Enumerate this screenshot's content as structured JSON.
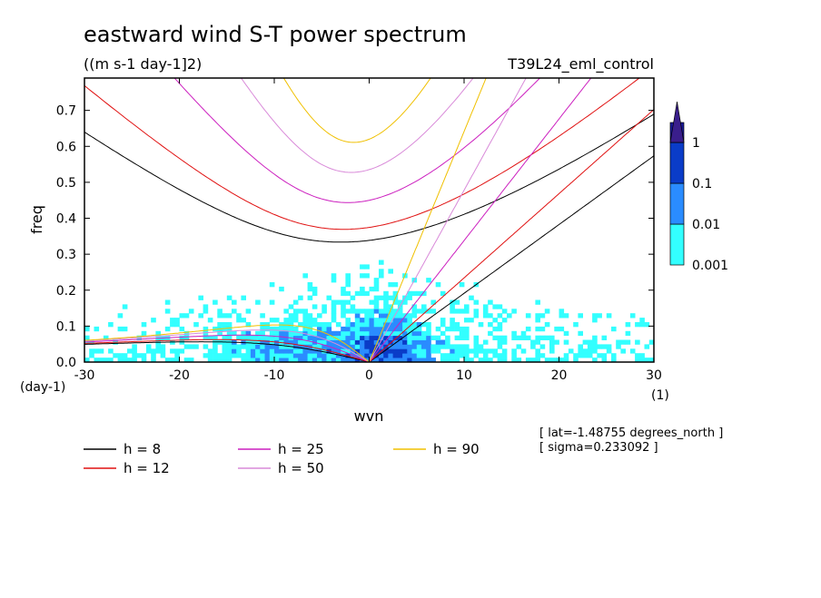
{
  "chart_data": {
    "type": "heatmap",
    "title": "eastward wind S-T power spectrum",
    "subtitle": "((m s-1 day-1]2)",
    "experiment": "T39L24_eml_control",
    "xlabel": "wvn",
    "ylabel": "freq",
    "xunit": "(1)",
    "yunit": "(day-1)",
    "xlim": [
      -30,
      30
    ],
    "ylim": [
      0,
      0.79
    ],
    "xticks": [
      "-30",
      "-20",
      "-10",
      "0",
      "10",
      "20",
      "30"
    ],
    "yticks": [
      "0.0",
      "0.1",
      "0.2",
      "0.3",
      "0.4",
      "0.5",
      "0.6",
      "0.7"
    ],
    "colorbar": {
      "levels": [
        "0.001",
        "0.01",
        "0.1",
        "1"
      ],
      "colors": [
        "#33ffff",
        "#2a8cff",
        "#0a3cc8",
        "#1a1a9a",
        "#3a1e8c"
      ]
    },
    "dispersion_curves": [
      {
        "label": "h =  8",
        "h": 8,
        "color": "#000000"
      },
      {
        "label": "h = 12",
        "h": 12,
        "color": "#e01010"
      },
      {
        "label": "h = 25",
        "h": 25,
        "color": "#cc1fbf"
      },
      {
        "label": "h = 50",
        "h": 50,
        "color": "#d98ad9"
      },
      {
        "label": "h = 90",
        "h": 90,
        "color": "#f0c000"
      }
    ],
    "annotations": [
      "[ lat=-1.48755 degrees_north ]",
      "[ sigma=0.233092 ]"
    ]
  }
}
